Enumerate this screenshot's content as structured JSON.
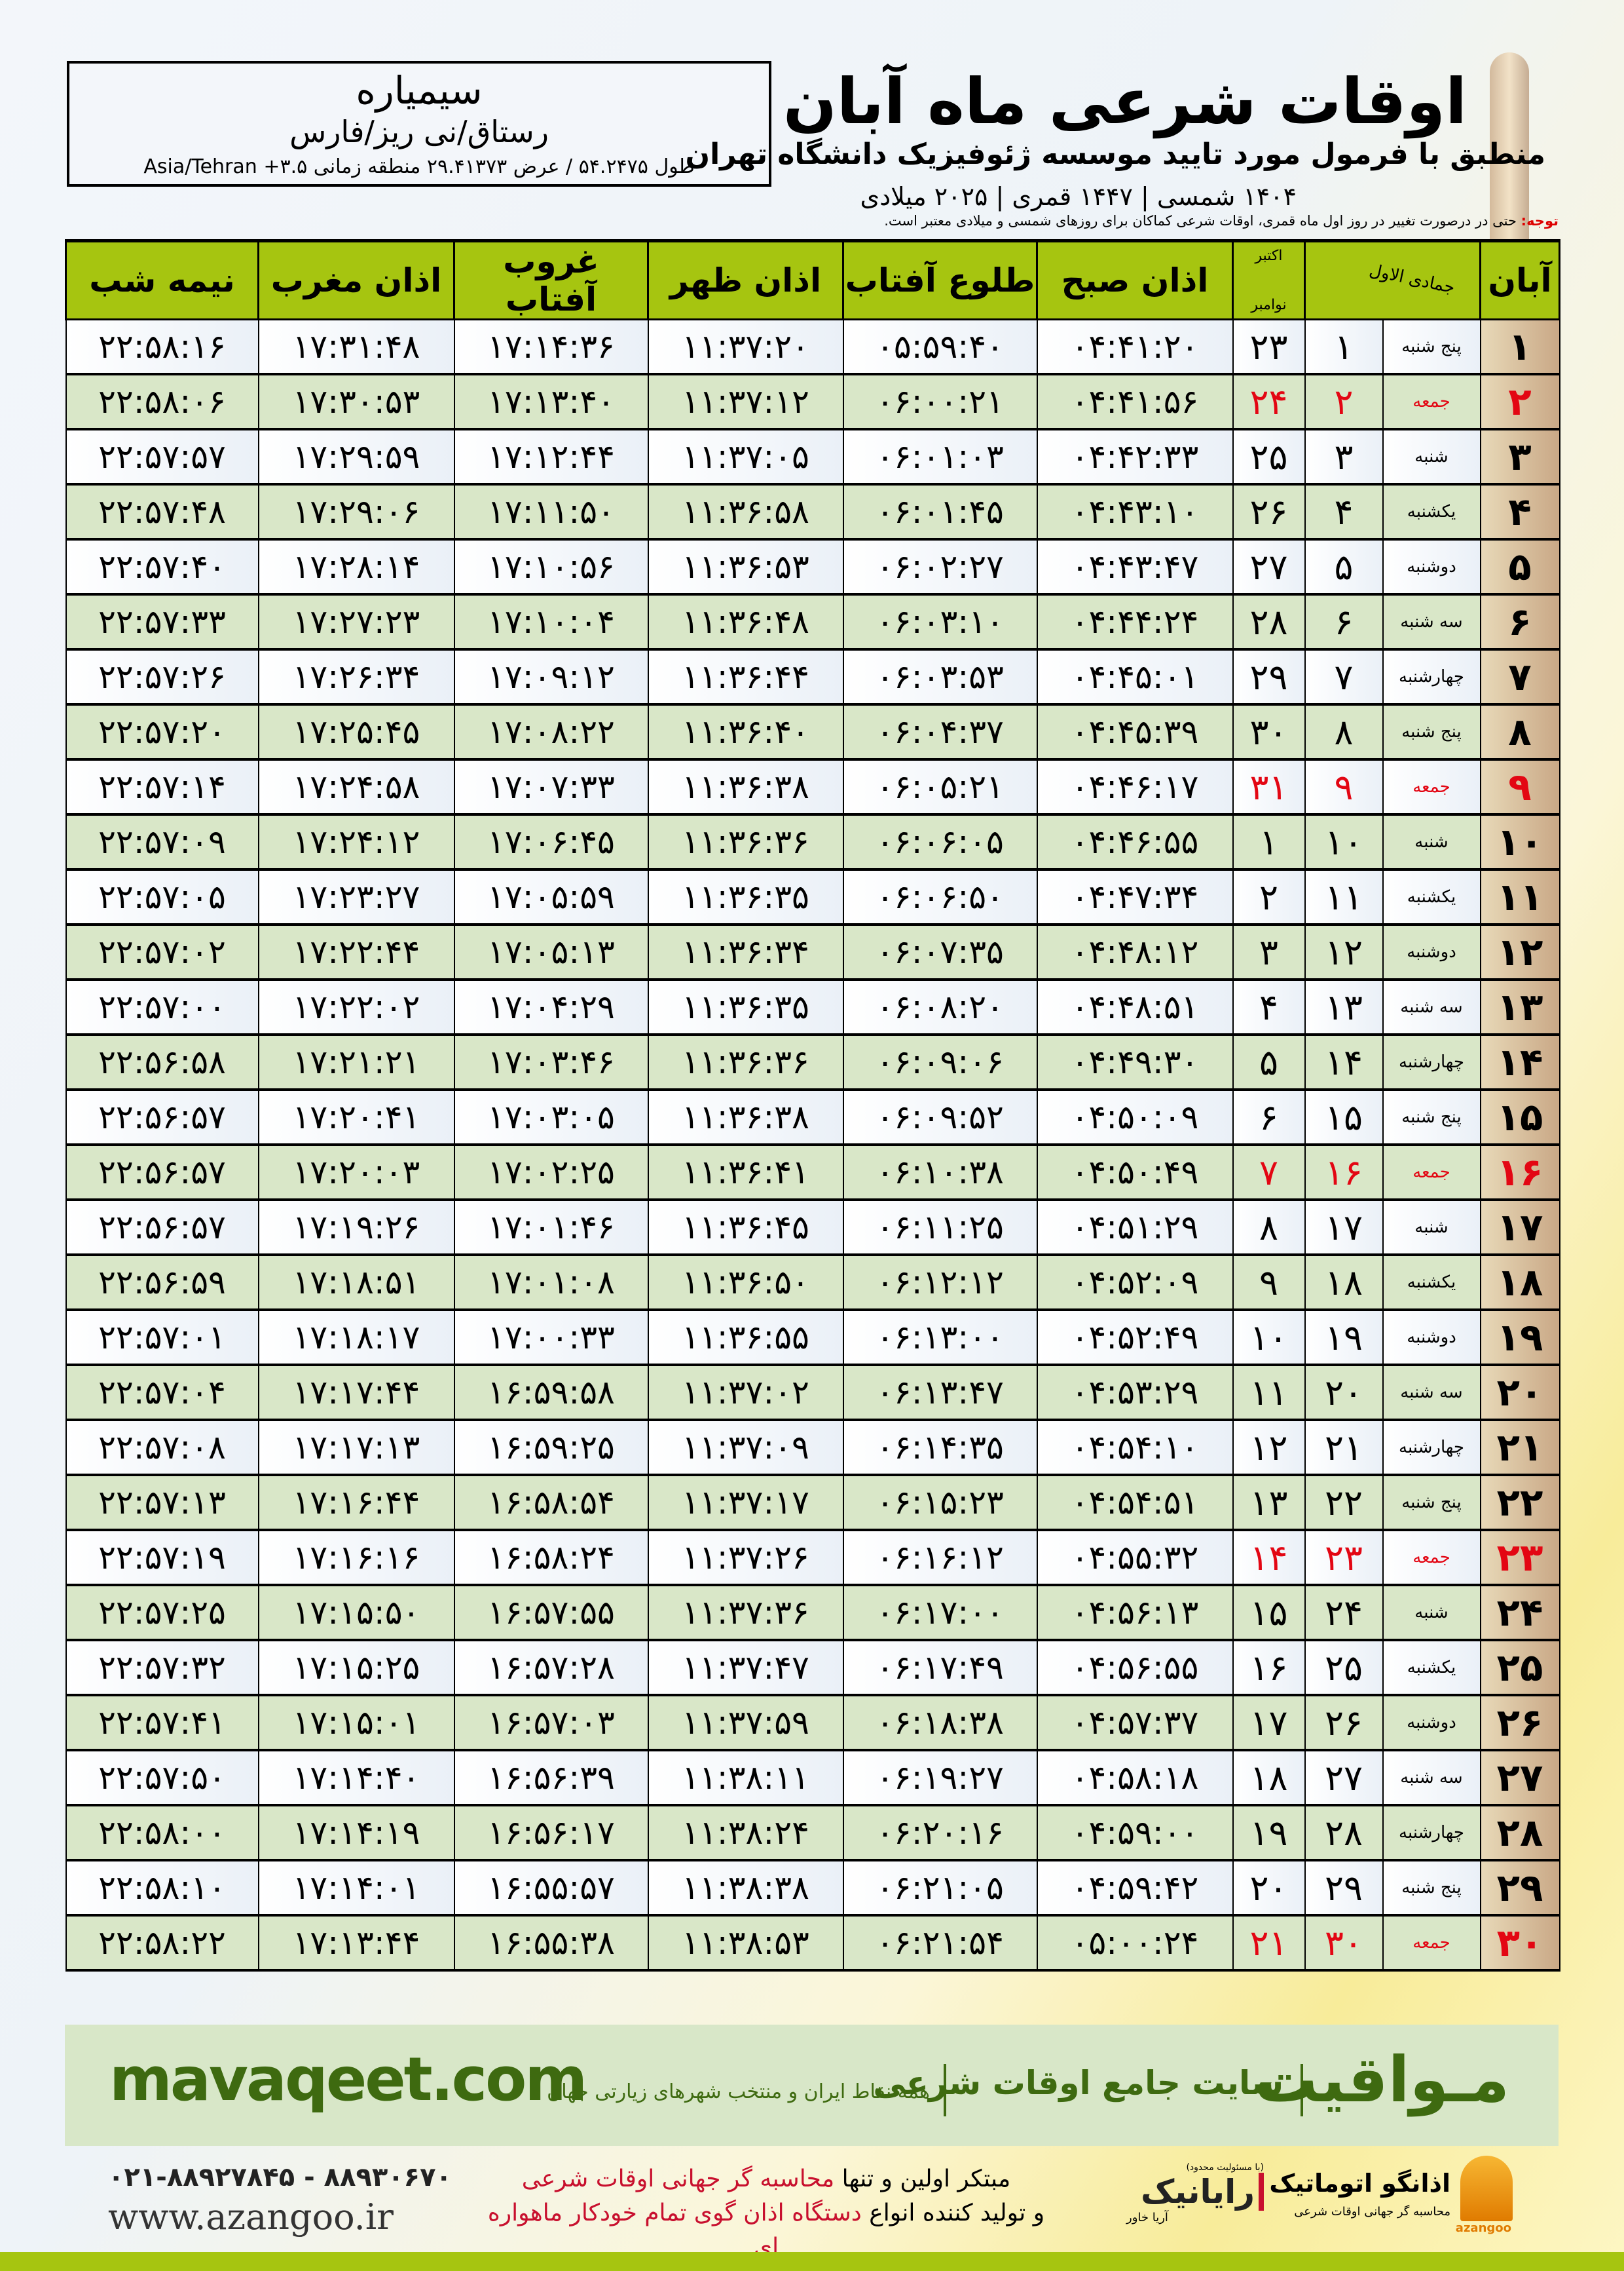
{
  "header": {
    "title": "اوقات شرعی ماه آبان",
    "subtitle": "منطبق با فرمول مورد تایید موسسه ژئوفیزیک دانشگاه تهران",
    "years": "۱۴۰۴ شمسی | ۱۴۴۷ قمری | ۲۰۲۵ میلادی"
  },
  "location": {
    "city": "سیمیاره",
    "region": "رستاق/نی ریز/فارس",
    "coords": "طول ۵۴.۲۴۷۵ / عرض ۲۹.۴۱۳۷۳ منطقه زمانی ۳.۵+ Asia/Tehran"
  },
  "note": {
    "label": "توجه:",
    "text": " حتی در درصورت تغییر در روز اول ماه قمری، اوقات شرعی کماکان برای روزهای شمسی و میلادی معتبر است."
  },
  "table": {
    "headers": {
      "aban": "آبان",
      "qamari": "جمادی الاول",
      "miladi_top": "اکتبر",
      "miladi_bottom": "نوامبر",
      "sobh": "اذان صبح",
      "tolu": "طلوع آفتاب",
      "zohr": "اذان ظهر",
      "ghorub": "غروب آفتاب",
      "maghrib": "اذان مغرب",
      "nime": "نیمه شب"
    },
    "holiday_color": "#e30613",
    "header_color": "#a6c510",
    "rows": [
      [
        "۱",
        "پنج شنبه",
        "۱",
        "۲۳",
        "۰۴:۴۱:۲۰",
        "۰۵:۵۹:۴۰",
        "۱۱:۳۷:۲۰",
        "۱۷:۱۴:۳۶",
        "۱۷:۳۱:۴۸",
        "۲۲:۵۸:۱۶"
      ],
      [
        "۲",
        "جمعه",
        "۲",
        "۲۴",
        "۰۴:۴۱:۵۶",
        "۰۶:۰۰:۲۱",
        "۱۱:۳۷:۱۲",
        "۱۷:۱۳:۴۰",
        "۱۷:۳۰:۵۳",
        "۲۲:۵۸:۰۶"
      ],
      [
        "۳",
        "شنبه",
        "۳",
        "۲۵",
        "۰۴:۴۲:۳۳",
        "۰۶:۰۱:۰۳",
        "۱۱:۳۷:۰۵",
        "۱۷:۱۲:۴۴",
        "۱۷:۲۹:۵۹",
        "۲۲:۵۷:۵۷"
      ],
      [
        "۴",
        "یکشنبه",
        "۴",
        "۲۶",
        "۰۴:۴۳:۱۰",
        "۰۶:۰۱:۴۵",
        "۱۱:۳۶:۵۸",
        "۱۷:۱۱:۵۰",
        "۱۷:۲۹:۰۶",
        "۲۲:۵۷:۴۸"
      ],
      [
        "۵",
        "دوشنبه",
        "۵",
        "۲۷",
        "۰۴:۴۳:۴۷",
        "۰۶:۰۲:۲۷",
        "۱۱:۳۶:۵۳",
        "۱۷:۱۰:۵۶",
        "۱۷:۲۸:۱۴",
        "۲۲:۵۷:۴۰"
      ],
      [
        "۶",
        "سه شنبه",
        "۶",
        "۲۸",
        "۰۴:۴۴:۲۴",
        "۰۶:۰۳:۱۰",
        "۱۱:۳۶:۴۸",
        "۱۷:۱۰:۰۴",
        "۱۷:۲۷:۲۳",
        "۲۲:۵۷:۳۳"
      ],
      [
        "۷",
        "چهارشنبه",
        "۷",
        "۲۹",
        "۰۴:۴۵:۰۱",
        "۰۶:۰۳:۵۳",
        "۱۱:۳۶:۴۴",
        "۱۷:۰۹:۱۲",
        "۱۷:۲۶:۳۴",
        "۲۲:۵۷:۲۶"
      ],
      [
        "۸",
        "پنج شنبه",
        "۸",
        "۳۰",
        "۰۴:۴۵:۳۹",
        "۰۶:۰۴:۳۷",
        "۱۱:۳۶:۴۰",
        "۱۷:۰۸:۲۲",
        "۱۷:۲۵:۴۵",
        "۲۲:۵۷:۲۰"
      ],
      [
        "۹",
        "جمعه",
        "۹",
        "۳۱",
        "۰۴:۴۶:۱۷",
        "۰۶:۰۵:۲۱",
        "۱۱:۳۶:۳۸",
        "۱۷:۰۷:۳۳",
        "۱۷:۲۴:۵۸",
        "۲۲:۵۷:۱۴"
      ],
      [
        "۱۰",
        "شنبه",
        "۱۰",
        "۱",
        "۰۴:۴۶:۵۵",
        "۰۶:۰۶:۰۵",
        "۱۱:۳۶:۳۶",
        "۱۷:۰۶:۴۵",
        "۱۷:۲۴:۱۲",
        "۲۲:۵۷:۰۹"
      ],
      [
        "۱۱",
        "یکشنبه",
        "۱۱",
        "۲",
        "۰۴:۴۷:۳۴",
        "۰۶:۰۶:۵۰",
        "۱۱:۳۶:۳۵",
        "۱۷:۰۵:۵۹",
        "۱۷:۲۳:۲۷",
        "۲۲:۵۷:۰۵"
      ],
      [
        "۱۲",
        "دوشنبه",
        "۱۲",
        "۳",
        "۰۴:۴۸:۱۲",
        "۰۶:۰۷:۳۵",
        "۱۱:۳۶:۳۴",
        "۱۷:۰۵:۱۳",
        "۱۷:۲۲:۴۴",
        "۲۲:۵۷:۰۲"
      ],
      [
        "۱۳",
        "سه شنبه",
        "۱۳",
        "۴",
        "۰۴:۴۸:۵۱",
        "۰۶:۰۸:۲۰",
        "۱۱:۳۶:۳۵",
        "۱۷:۰۴:۲۹",
        "۱۷:۲۲:۰۲",
        "۲۲:۵۷:۰۰"
      ],
      [
        "۱۴",
        "چهارشنبه",
        "۱۴",
        "۵",
        "۰۴:۴۹:۳۰",
        "۰۶:۰۹:۰۶",
        "۱۱:۳۶:۳۶",
        "۱۷:۰۳:۴۶",
        "۱۷:۲۱:۲۱",
        "۲۲:۵۶:۵۸"
      ],
      [
        "۱۵",
        "پنج شنبه",
        "۱۵",
        "۶",
        "۰۴:۵۰:۰۹",
        "۰۶:۰۹:۵۲",
        "۱۱:۳۶:۳۸",
        "۱۷:۰۳:۰۵",
        "۱۷:۲۰:۴۱",
        "۲۲:۵۶:۵۷"
      ],
      [
        "۱۶",
        "جمعه",
        "۱۶",
        "۷",
        "۰۴:۵۰:۴۹",
        "۰۶:۱۰:۳۸",
        "۱۱:۳۶:۴۱",
        "۱۷:۰۲:۲۵",
        "۱۷:۲۰:۰۳",
        "۲۲:۵۶:۵۷"
      ],
      [
        "۱۷",
        "شنبه",
        "۱۷",
        "۸",
        "۰۴:۵۱:۲۹",
        "۰۶:۱۱:۲۵",
        "۱۱:۳۶:۴۵",
        "۱۷:۰۱:۴۶",
        "۱۷:۱۹:۲۶",
        "۲۲:۵۶:۵۷"
      ],
      [
        "۱۸",
        "یکشنبه",
        "۱۸",
        "۹",
        "۰۴:۵۲:۰۹",
        "۰۶:۱۲:۱۲",
        "۱۱:۳۶:۵۰",
        "۱۷:۰۱:۰۸",
        "۱۷:۱۸:۵۱",
        "۲۲:۵۶:۵۹"
      ],
      [
        "۱۹",
        "دوشنبه",
        "۱۹",
        "۱۰",
        "۰۴:۵۲:۴۹",
        "۰۶:۱۳:۰۰",
        "۱۱:۳۶:۵۵",
        "۱۷:۰۰:۳۳",
        "۱۷:۱۸:۱۷",
        "۲۲:۵۷:۰۱"
      ],
      [
        "۲۰",
        "سه شنبه",
        "۲۰",
        "۱۱",
        "۰۴:۵۳:۲۹",
        "۰۶:۱۳:۴۷",
        "۱۱:۳۷:۰۲",
        "۱۶:۵۹:۵۸",
        "۱۷:۱۷:۴۴",
        "۲۲:۵۷:۰۴"
      ],
      [
        "۲۱",
        "چهارشنبه",
        "۲۱",
        "۱۲",
        "۰۴:۵۴:۱۰",
        "۰۶:۱۴:۳۵",
        "۱۱:۳۷:۰۹",
        "۱۶:۵۹:۲۵",
        "۱۷:۱۷:۱۳",
        "۲۲:۵۷:۰۸"
      ],
      [
        "۲۲",
        "پنج شنبه",
        "۲۲",
        "۱۳",
        "۰۴:۵۴:۵۱",
        "۰۶:۱۵:۲۳",
        "۱۱:۳۷:۱۷",
        "۱۶:۵۸:۵۴",
        "۱۷:۱۶:۴۴",
        "۲۲:۵۷:۱۳"
      ],
      [
        "۲۳",
        "جمعه",
        "۲۳",
        "۱۴",
        "۰۴:۵۵:۳۲",
        "۰۶:۱۶:۱۲",
        "۱۱:۳۷:۲۶",
        "۱۶:۵۸:۲۴",
        "۱۷:۱۶:۱۶",
        "۲۲:۵۷:۱۹"
      ],
      [
        "۲۴",
        "شنبه",
        "۲۴",
        "۱۵",
        "۰۴:۵۶:۱۳",
        "۰۶:۱۷:۰۰",
        "۱۱:۳۷:۳۶",
        "۱۶:۵۷:۵۵",
        "۱۷:۱۵:۵۰",
        "۲۲:۵۷:۲۵"
      ],
      [
        "۲۵",
        "یکشنبه",
        "۲۵",
        "۱۶",
        "۰۴:۵۶:۵۵",
        "۰۶:۱۷:۴۹",
        "۱۱:۳۷:۴۷",
        "۱۶:۵۷:۲۸",
        "۱۷:۱۵:۲۵",
        "۲۲:۵۷:۳۲"
      ],
      [
        "۲۶",
        "دوشنبه",
        "۲۶",
        "۱۷",
        "۰۴:۵۷:۳۷",
        "۰۶:۱۸:۳۸",
        "۱۱:۳۷:۵۹",
        "۱۶:۵۷:۰۳",
        "۱۷:۱۵:۰۱",
        "۲۲:۵۷:۴۱"
      ],
      [
        "۲۷",
        "سه شنبه",
        "۲۷",
        "۱۸",
        "۰۴:۵۸:۱۸",
        "۰۶:۱۹:۲۷",
        "۱۱:۳۸:۱۱",
        "۱۶:۵۶:۳۹",
        "۱۷:۱۴:۴۰",
        "۲۲:۵۷:۵۰"
      ],
      [
        "۲۸",
        "چهارشنبه",
        "۲۸",
        "۱۹",
        "۰۴:۵۹:۰۰",
        "۰۶:۲۰:۱۶",
        "۱۱:۳۸:۲۴",
        "۱۶:۵۶:۱۷",
        "۱۷:۱۴:۱۹",
        "۲۲:۵۸:۰۰"
      ],
      [
        "۲۹",
        "پنج شنبه",
        "۲۹",
        "۲۰",
        "۰۴:۵۹:۴۲",
        "۰۶:۲۱:۰۵",
        "۱۱:۳۸:۳۸",
        "۱۶:۵۵:۵۷",
        "۱۷:۱۴:۰۱",
        "۲۲:۵۸:۱۰"
      ],
      [
        "۳۰",
        "جمعه",
        "۳۰",
        "۲۱",
        "۰۵:۰۰:۲۴",
        "۰۶:۲۱:۵۴",
        "۱۱:۳۸:۵۳",
        "۱۶:۵۵:۳۸",
        "۱۷:۱۳:۴۴",
        "۲۲:۵۸:۲۲"
      ]
    ]
  },
  "banner": {
    "brand": "مـواقیت",
    "site": "سایت جامع اوقات شرعی",
    "desc": "همه نقاط ایران و منتخب شهرهای زیارتی جهان",
    "url": "mavaqeet.com"
  },
  "footer": {
    "phone": "۰۲۱-۸۸۹۲۷۸۴۵ - ۸۸۹۳۰۶۷۰",
    "web": "www.azangoo.ir",
    "promo_1a": "مبتکر اولین و تنها ",
    "promo_1b": "محاسبه گر جهانی اوقات شرعی",
    "promo_2a": "و تولید کننده انواع ",
    "promo_2b": "دستگاه اذان گوی تمام خودکار ماهواره ای",
    "rayanik": "رایانیک",
    "rayanik_sub": "آریا خاور",
    "rayanik_note": "(با مسئولیت محدود)",
    "azangoo": "اذانگو اتوماتیک",
    "azangoo_sub": "محاسبه گر جهانی اوقات شرعی",
    "azangoo_en": "azangoo"
  }
}
